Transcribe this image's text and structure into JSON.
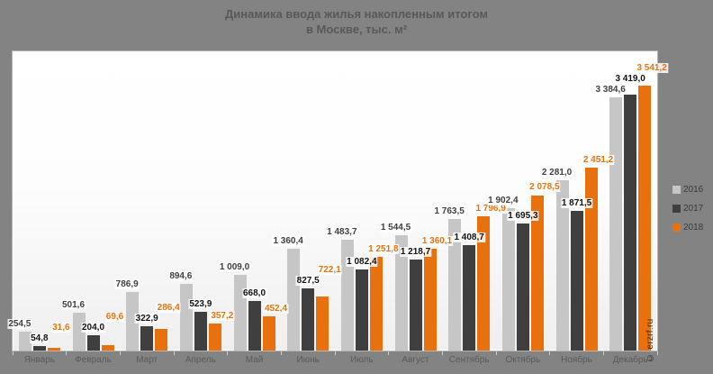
{
  "title": {
    "line1": "Динамика ввода жилья накопленным итогом",
    "line2": "в Москве, тыс. м²"
  },
  "watermark": "© erzrf.ru",
  "colors": {
    "background": "#838383",
    "bar_2016": "#c6c6c6",
    "bar_2017": "#3f3f3f",
    "bar_2018": "#e8710d",
    "title_text": "#595959",
    "axis_text": "#5a5a5a"
  },
  "legend": {
    "position": "right",
    "items": [
      {
        "label": "2016",
        "color": "#c6c6c6"
      },
      {
        "label": "2017",
        "color": "#3f3f3f"
      },
      {
        "label": "2018",
        "color": "#e8710d"
      }
    ]
  },
  "chart_data": {
    "type": "bar",
    "title": "Динамика ввода жилья накопленным итогом в Москве, тыс. м²",
    "xlabel": "",
    "ylabel": "тыс. м²",
    "ylim": [
      0,
      4000
    ],
    "grid": false,
    "legend_position": "right",
    "categories": [
      "Январь",
      "Февраль",
      "Март",
      "Апрель",
      "Май",
      "Июнь",
      "Июль",
      "Август",
      "Сентябрь",
      "Октябрь",
      "Ноябрь",
      "Декабрь"
    ],
    "series": [
      {
        "name": "2016",
        "color": "#c6c6c6",
        "label_color": "#3f3f3f",
        "values": [
          254.5,
          501.6,
          786.9,
          894.6,
          1009.0,
          1360.4,
          1483.7,
          1544.5,
          1763.5,
          1902.4,
          2281.0,
          3384.6
        ],
        "labels": [
          "254,5",
          "501,6",
          "786,9",
          "894,6",
          "1 009,0",
          "1 360,4",
          "1 483,7",
          "1 544,5",
          "1 763,5",
          "1 902,4",
          "2 281,0",
          "3 384,6"
        ]
      },
      {
        "name": "2017",
        "color": "#3f3f3f",
        "label_color": "#111111",
        "values": [
          54.8,
          204.0,
          322.9,
          523.9,
          668.0,
          827.5,
          1082.4,
          1218.7,
          1408.7,
          1695.3,
          1871.5,
          3419.0
        ],
        "labels": [
          "54,8",
          "204,0",
          "322,9",
          "523,9",
          "668,0",
          "827,5",
          "1 082,4",
          "1 218,7",
          "1 408,7",
          "1 695,3",
          "1 871,5",
          "3 419,0"
        ]
      },
      {
        "name": "2018",
        "color": "#e8710d",
        "label_color": "#e8710d",
        "values": [
          31.6,
          69.6,
          286.4,
          357.2,
          452.4,
          722.1,
          1251.8,
          1360.1,
          1796.9,
          2078.5,
          2451.2,
          3541.2
        ],
        "labels": [
          "31,6",
          "69,6",
          "286,4",
          "357,2",
          "452,4",
          "722,1",
          "1 251,8",
          "1 360,1",
          "1 796,9",
          "2 078,5",
          "2 451,2",
          "3 541,2"
        ]
      }
    ]
  }
}
